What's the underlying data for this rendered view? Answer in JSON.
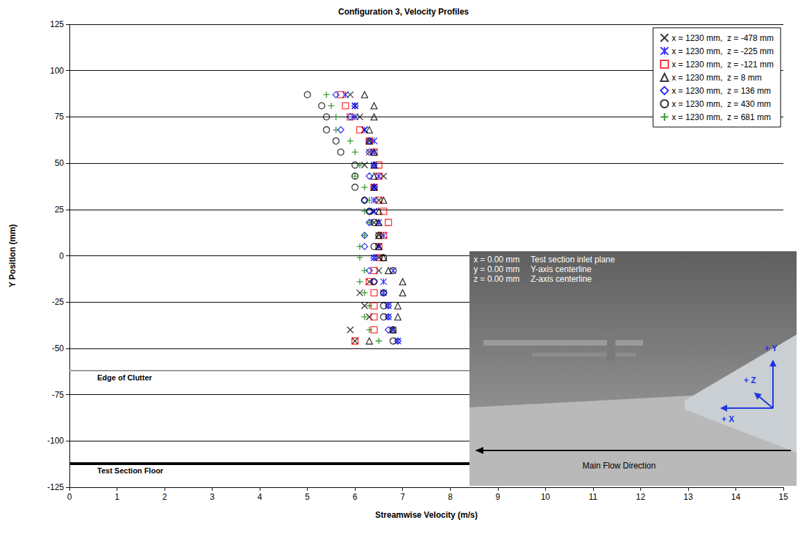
{
  "chart_data": {
    "type": "scatter",
    "title": "Configuration 3, Velocity Profiles",
    "x_label": "Streamwise Velocity (m/s)",
    "y_label": "Y Position (mm)",
    "xlim": [
      0,
      15
    ],
    "xticks": [
      0,
      1,
      2,
      3,
      4,
      5,
      6,
      7,
      8,
      9,
      10,
      11,
      12,
      13,
      14,
      15
    ],
    "ylim": [
      -125,
      125
    ],
    "yticks": [
      -125,
      -100,
      -75,
      -50,
      -25,
      0,
      25,
      50,
      75,
      100,
      125
    ],
    "grid": true,
    "legend": "top-right",
    "series": [
      {
        "name": "x = 1230 mm,  z = -478 mm",
        "color": "#000000",
        "marker": "x",
        "x": [
          6.0,
          5.9,
          6.3,
          6.2,
          6.1,
          6.3,
          6.5,
          6.5,
          6.5,
          6.5,
          6.4,
          6.4,
          6.5,
          6.4,
          6.6,
          6.2,
          6.3,
          6.3,
          6.2,
          6.1,
          6.0,
          5.9
        ],
        "y": [
          -46,
          -40,
          -33,
          -27,
          -20,
          -14,
          -8,
          -1,
          5,
          11,
          18,
          24,
          30,
          37,
          43,
          49,
          56,
          62,
          68,
          75,
          81,
          87
        ]
      },
      {
        "name": "x = 1230 mm,  z = -225 mm",
        "color": "#0000ff",
        "marker": "asterisk",
        "x": [
          6.9,
          6.8,
          6.7,
          6.7,
          6.6,
          6.6,
          6.8,
          6.4,
          6.5,
          6.6,
          6.5,
          6.4,
          6.4,
          6.4,
          6.5,
          6.4,
          6.4,
          6.4,
          6.2,
          6.0,
          6.0,
          5.8
        ],
        "y": [
          -46,
          -40,
          -33,
          -27,
          -20,
          -14,
          -8,
          -1,
          5,
          11,
          18,
          24,
          30,
          37,
          43,
          49,
          56,
          62,
          68,
          75,
          81,
          87
        ]
      },
      {
        "name": "x = 1230 mm,  z = -121 mm",
        "color": "#ff0000",
        "marker": "square",
        "x": [
          6.0,
          6.4,
          6.4,
          6.4,
          6.4,
          6.3,
          6.4,
          6.5,
          6.5,
          6.6,
          6.7,
          6.6,
          6.5,
          6.4,
          6.5,
          6.5,
          6.4,
          6.3,
          6.1,
          5.9,
          5.8,
          5.7
        ],
        "y": [
          -46,
          -40,
          -33,
          -27,
          -20,
          -14,
          -8,
          -1,
          5,
          11,
          18,
          24,
          30,
          37,
          43,
          49,
          56,
          62,
          68,
          75,
          81,
          87
        ]
      },
      {
        "name": "x = 1230 mm,  z = 8 mm",
        "color": "#000000",
        "marker": "triangle",
        "x": [
          6.3,
          6.8,
          6.9,
          6.9,
          7.0,
          7.0,
          6.7,
          6.6,
          6.5,
          6.5,
          6.5,
          6.5,
          6.6,
          6.4,
          6.4,
          6.4,
          6.4,
          6.3,
          6.3,
          6.4,
          6.4,
          6.2
        ],
        "y": [
          -46,
          -40,
          -33,
          -27,
          -20,
          -14,
          -8,
          -1,
          5,
          11,
          18,
          24,
          30,
          37,
          43,
          49,
          56,
          62,
          68,
          75,
          81,
          87
        ]
      },
      {
        "name": "x = 1230 mm,  z = 136 mm",
        "color": "#0000ff",
        "marker": "diamond",
        "x": [
          6.9,
          6.7,
          6.7,
          6.7,
          6.6,
          6.4,
          6.3,
          6.4,
          6.2,
          6.2,
          6.3,
          6.3,
          6.2,
          6.4,
          6.3,
          6.4,
          6.3,
          6.3,
          5.7,
          5.9,
          6.0,
          5.6
        ],
        "y": [
          -46,
          -40,
          -33,
          -27,
          -20,
          -14,
          -8,
          -1,
          5,
          11,
          18,
          24,
          30,
          37,
          43,
          49,
          56,
          62,
          68,
          75,
          81,
          87
        ]
      },
      {
        "name": "x = 1230 mm,  z = 430 mm",
        "color": "#000000",
        "marker": "circle",
        "x": [
          6.8,
          6.8,
          6.6,
          6.6,
          6.6,
          6.4,
          6.8,
          6.6,
          6.4,
          6.5,
          6.4,
          6.3,
          6.2,
          6.0,
          6.0,
          6.0,
          5.7,
          5.6,
          5.4,
          5.4,
          5.3,
          5.0
        ],
        "y": [
          -46,
          -40,
          -33,
          -27,
          -20,
          -14,
          -8,
          -1,
          5,
          11,
          18,
          24,
          30,
          37,
          43,
          49,
          56,
          62,
          68,
          75,
          81,
          87
        ]
      },
      {
        "name": "x = 1230 mm,  z = 681 mm",
        "color": "#008000",
        "marker": "plus",
        "x": [
          6.5,
          6.3,
          6.2,
          6.3,
          6.2,
          6.1,
          6.2,
          6.1,
          6.1,
          6.2,
          6.3,
          6.2,
          6.3,
          6.2,
          6.0,
          6.1,
          6.0,
          5.9,
          5.6,
          5.6,
          5.5,
          5.4
        ],
        "y": [
          -46,
          -40,
          -33,
          -27,
          -20,
          -14,
          -8,
          -1,
          5,
          11,
          18,
          24,
          30,
          37,
          43,
          49,
          56,
          62,
          68,
          75,
          81,
          87
        ]
      }
    ],
    "annotations": [
      {
        "text": "Edge of Clutter",
        "y": -62,
        "line_style": "thin"
      },
      {
        "text": "Test Section Floor",
        "y": -112,
        "line_style": "bold"
      }
    ],
    "inset": {
      "rows": [
        {
          "name": "x = 0.00 mm",
          "text": "Test section inlet plane"
        },
        {
          "name": "y = 0.00 mm",
          "text": "Y-axis centerline"
        },
        {
          "name": "z = 0.00 mm",
          "text": "Z-axis centerline"
        }
      ],
      "axes": [
        "+ Y",
        "+ Z",
        "+ X"
      ],
      "flow": "Main Flow Direction"
    }
  }
}
